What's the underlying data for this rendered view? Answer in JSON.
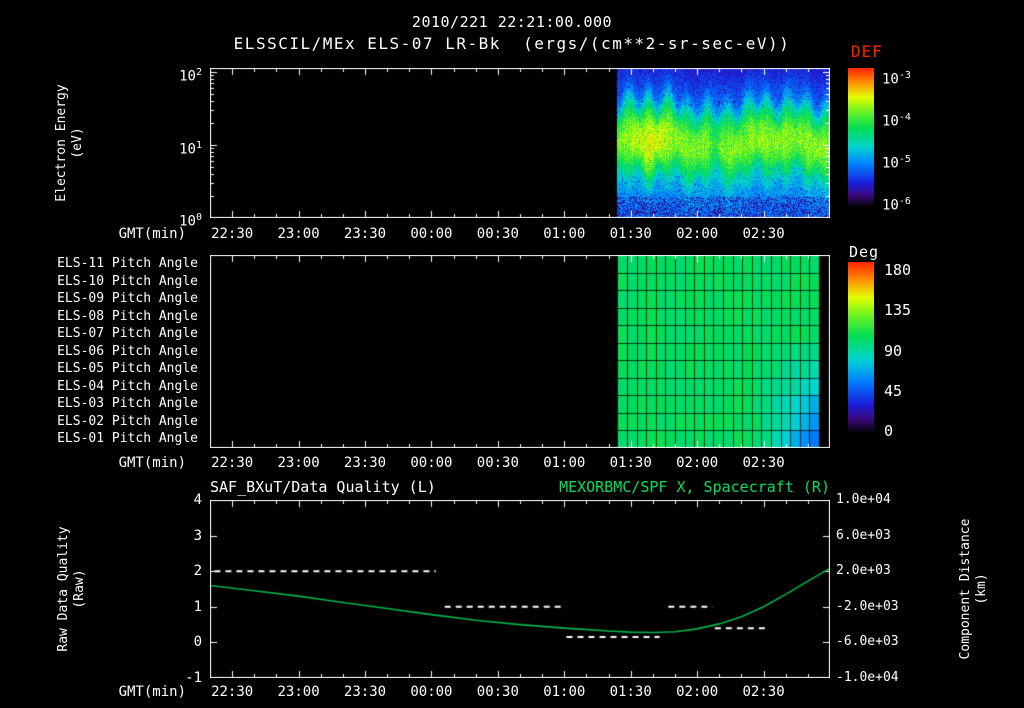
{
  "colors": {
    "background": "#000000",
    "foreground": "#ffffff",
    "def_label": "#ff2600",
    "right_title_green": "#00e05a",
    "spacecraft_curve_green": "#00b44e",
    "quality_dashes": "#ffffff"
  },
  "header": {
    "timestamp_title": "2010/221 22:21:00.000",
    "dataset_title": "ELSSCIL/MEx ELS-07 LR-Bk  (ergs/(cm**2-sr-sec-eV))"
  },
  "axes": {
    "x_label": "GMT(min)",
    "x_ticks": [
      "22:30",
      "23:00",
      "23:30",
      "00:00",
      "00:30",
      "01:00",
      "01:30",
      "02:00",
      "02:30"
    ]
  },
  "panels": {
    "spectrogram": {
      "ylabel": "Electron Energy\n(eV)",
      "y_ticks": [
        {
          "base": "10",
          "exp": "2"
        },
        {
          "base": "10",
          "exp": "1"
        },
        {
          "base": "10",
          "exp": "0"
        }
      ],
      "colorbar": {
        "title": "DEF",
        "ticks": [
          {
            "base": "10",
            "exp": "-3"
          },
          {
            "base": "10",
            "exp": "-4"
          },
          {
            "base": "10",
            "exp": "-5"
          },
          {
            "base": "10",
            "exp": "-6"
          }
        ]
      }
    },
    "pitch": {
      "row_labels": [
        "ELS-11 Pitch Angle",
        "ELS-10 Pitch Angle",
        "ELS-09 Pitch Angle",
        "ELS-08 Pitch Angle",
        "ELS-07 Pitch Angle",
        "ELS-06 Pitch Angle",
        "ELS-05 Pitch Angle",
        "ELS-04 Pitch Angle",
        "ELS-03 Pitch Angle",
        "ELS-02 Pitch Angle",
        "ELS-01 Pitch Angle"
      ],
      "colorbar": {
        "title": "Deg",
        "ticks": [
          "180",
          "135",
          "90",
          "45",
          "0"
        ]
      }
    },
    "quality": {
      "left_title": "SAF_BXuT/Data Quality (L)",
      "right_title": "MEXORBMC/SPF X, Spacecraft (R)",
      "left_ylabel": "Raw Data Quality\n(Raw)",
      "right_ylabel": "Component Distance\n(km)",
      "left_ticks": [
        "4",
        "3",
        "2",
        "1",
        "0",
        "-1"
      ],
      "right_ticks": [
        "1.0e+04",
        "6.0e+03",
        "2.0e+03",
        "-2.0e+03",
        "-6.0e+03",
        "-1.0e+04"
      ]
    }
  },
  "chart_data": [
    {
      "type": "heatmap",
      "name": "electron-energy-spectrogram",
      "title": "ELSSCIL/MEx ELS-07 LR-Bk",
      "units": "ergs/(cm**2-sr-sec-eV)",
      "xlabel": "GMT(min)",
      "x_ticks": [
        "22:30",
        "23:00",
        "23:30",
        "00:00",
        "00:30",
        "01:00",
        "01:30",
        "02:00",
        "02:30"
      ],
      "x_domain_minutes_since_2200": [
        20,
        300
      ],
      "ylabel": "Electron Energy (eV)",
      "y_scale": "log",
      "y_domain_eV": [
        1,
        112
      ],
      "colorbar": {
        "title": "DEF",
        "scale": "log",
        "tick_values": [
          0.001,
          0.0001,
          1e-05,
          1e-06
        ]
      },
      "data_interval_minutes": [
        204,
        300
      ],
      "features": {
        "no_data_before": "01:24",
        "band_center_eV": 11,
        "band_width_decades": 0.2,
        "band_peak_flux": 0.00011,
        "enhanced_blob_minutes": [
          211,
          227
        ],
        "enhanced_blob_peak_flux": 0.00025,
        "dip_minutes": [
          244,
          252
        ],
        "flux_below_band": 2e-05,
        "flux_above_band": 8e-06
      }
    },
    {
      "type": "heatmap",
      "name": "pitch-angle-panel",
      "rows": [
        "ELS-11 Pitch Angle",
        "ELS-10 Pitch Angle",
        "ELS-09 Pitch Angle",
        "ELS-08 Pitch Angle",
        "ELS-07 Pitch Angle",
        "ELS-06 Pitch Angle",
        "ELS-05 Pitch Angle",
        "ELS-04 Pitch Angle",
        "ELS-03 Pitch Angle",
        "ELS-02 Pitch Angle",
        "ELS-01 Pitch Angle"
      ],
      "colorbar": {
        "title": "Deg",
        "range_deg": [
          0,
          180
        ]
      },
      "data_interval_minutes": [
        204,
        295
      ],
      "typical_pitch_angle_deg": 100,
      "corner_feature": "pitch angle decreases toward ~55 deg (cyan/blue cells) for low-numbered anodes near the end of the interval",
      "grid_columns": 21,
      "grid_rows": 11
    },
    {
      "type": "line",
      "name": "quality-and-spacecraft-x",
      "left_axis": {
        "label": "Raw Data Quality (Raw)",
        "ylim": [
          -1,
          4
        ]
      },
      "right_axis": {
        "label": "Component Distance (km)",
        "ylim": [
          -10000,
          10000
        ]
      },
      "series": [
        {
          "name": "SAF_BXuT/Data Quality (L)",
          "axis": "left",
          "style": "dashed",
          "color": "#ffffff",
          "segments": [
            {
              "value": 2,
              "t0_min": 22,
              "t1_min": 122
            },
            {
              "value": 1,
              "t0_min": 126,
              "t1_min": 180
            },
            {
              "value": 0.15,
              "t0_min": 181,
              "t1_min": 223
            },
            {
              "value": 1,
              "t0_min": 227,
              "t1_min": 247
            },
            {
              "value": 0.4,
              "t0_min": 248,
              "t1_min": 271
            }
          ]
        },
        {
          "name": "MEXORBMC/SPF X, Spacecraft (R)",
          "axis": "right",
          "style": "solid",
          "color": "#00b44e",
          "t_min": [
            20,
            40,
            60,
            80,
            100,
            120,
            140,
            160,
            180,
            200,
            210,
            220,
            230,
            240,
            250,
            260,
            270,
            280,
            290,
            300
          ],
          "x_km": [
            400,
            -200,
            -800,
            -1520,
            -2200,
            -2880,
            -3520,
            -4000,
            -4400,
            -4720,
            -4840,
            -4880,
            -4800,
            -4480,
            -3920,
            -3120,
            -2000,
            -600,
            880,
            2320
          ]
        }
      ]
    }
  ]
}
